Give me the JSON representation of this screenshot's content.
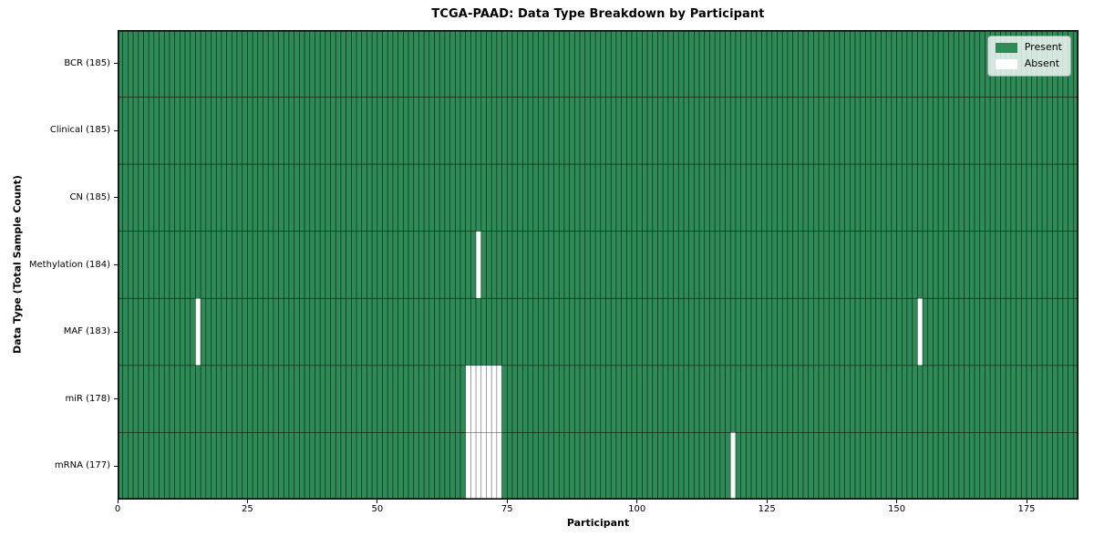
{
  "chart_data": {
    "type": "heatmap",
    "title": "TCGA-PAAD: Data Type Breakdown by Participant",
    "xlabel": "Participant",
    "ylabel": "Data Type (Total Sample Count)",
    "xlim": [
      0,
      185
    ],
    "n_participants": 185,
    "x_ticks": [
      0,
      25,
      50,
      75,
      100,
      125,
      150,
      175
    ],
    "rows": [
      {
        "label": "BCR (185)",
        "data_type": "BCR",
        "total_samples": 185,
        "absent_participants": []
      },
      {
        "label": "Clinical (185)",
        "data_type": "Clinical",
        "total_samples": 185,
        "absent_participants": []
      },
      {
        "label": "CN (185)",
        "data_type": "CN",
        "total_samples": 185,
        "absent_participants": []
      },
      {
        "label": "Methylation (184)",
        "data_type": "Methylation",
        "total_samples": 184,
        "absent_participants": [
          69
        ]
      },
      {
        "label": "MAF (183)",
        "data_type": "MAF",
        "total_samples": 183,
        "absent_participants": [
          15,
          154
        ]
      },
      {
        "label": "miR (178)",
        "data_type": "miR",
        "total_samples": 178,
        "absent_participants": [
          67,
          68,
          69,
          70,
          71,
          72,
          73
        ]
      },
      {
        "label": "mRNA (177)",
        "data_type": "mRNA",
        "total_samples": 177,
        "absent_participants": [
          67,
          68,
          69,
          70,
          71,
          72,
          73,
          118
        ]
      }
    ],
    "legend": {
      "position": "upper right",
      "entries": [
        {
          "label": "Present",
          "color": "#2e8b57"
        },
        {
          "label": "Absent",
          "color": "#ffffff"
        }
      ]
    },
    "colors": {
      "present": "#2e8b57",
      "absent": "#ffffff",
      "cell_edge_on_present": "rgba(0,0,0,0.55)",
      "cell_edge_on_absent": "rgba(0,0,0,0.38)",
      "spine": "#000000"
    },
    "grid": false
  }
}
